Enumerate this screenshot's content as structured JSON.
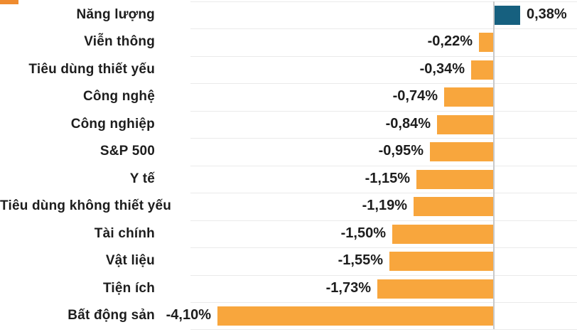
{
  "chart_data": {
    "type": "bar",
    "orientation": "horizontal",
    "title": "",
    "xlabel": "",
    "ylabel": "",
    "categories": [
      "Năng lượng",
      "Viễn thông",
      "Tiêu dùng thiết yếu",
      "Công nghệ",
      "Công nghiệp",
      "S&P 500",
      "Y tế",
      "Tiêu dùng không thiết yếu",
      "Tài chính",
      "Vật liệu",
      "Tiện ích",
      "Bất động sản"
    ],
    "values": [
      0.38,
      -0.22,
      -0.34,
      -0.74,
      -0.84,
      -0.95,
      -1.15,
      -1.19,
      -1.5,
      -1.55,
      -1.73,
      -4.1
    ],
    "value_labels": [
      "0,38%",
      "-0,22%",
      "-0,34%",
      "-0,74%",
      "-0,84%",
      "-0,95%",
      "-1,15%",
      "-1,19%",
      "-1,50%",
      "-1,55%",
      "-1,73%",
      "-4,10%"
    ],
    "xlim": [
      -4.5,
      1.2
    ],
    "grid": true,
    "legend_position": "top-left-cropped",
    "colors": {
      "positive_bar": "#16607F",
      "negative_bar": "#F8A63D",
      "legend_swatch": "#EF8B2F",
      "gridline": "#EAEAEA",
      "zero_axis": "#C9C9C9",
      "text": "#1D1D1D"
    }
  }
}
